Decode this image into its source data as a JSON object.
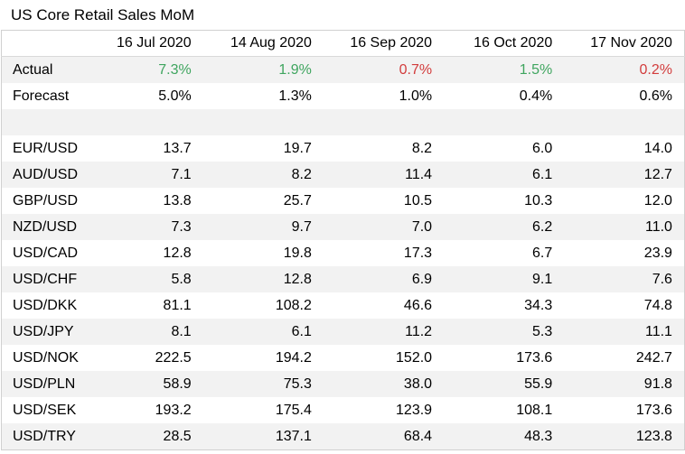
{
  "title": "US Core Retail Sales MoM",
  "chart_data": {
    "type": "table",
    "title": "US Core Retail Sales MoM",
    "columns": [
      "16 Jul 2020",
      "14 Aug 2020",
      "16 Sep 2020",
      "16 Oct 2020",
      "17 Nov 2020"
    ],
    "actual": {
      "label": "Actual",
      "values": [
        "7.3%",
        "1.9%",
        "0.7%",
        "1.5%",
        "0.2%"
      ],
      "direction": [
        "up",
        "up",
        "down",
        "up",
        "down"
      ]
    },
    "forecast": {
      "label": "Forecast",
      "values": [
        "5.0%",
        "1.3%",
        "1.0%",
        "0.4%",
        "0.6%"
      ]
    },
    "rows": [
      {
        "label": "EUR/USD",
        "values": [
          "13.7",
          "19.7",
          "8.2",
          "6.0",
          "14.0"
        ]
      },
      {
        "label": "AUD/USD",
        "values": [
          "7.1",
          "8.2",
          "11.4",
          "6.1",
          "12.7"
        ]
      },
      {
        "label": "GBP/USD",
        "values": [
          "13.8",
          "25.7",
          "10.5",
          "10.3",
          "12.0"
        ]
      },
      {
        "label": "NZD/USD",
        "values": [
          "7.3",
          "9.7",
          "7.0",
          "6.2",
          "11.0"
        ]
      },
      {
        "label": "USD/CAD",
        "values": [
          "12.8",
          "19.8",
          "17.3",
          "6.7",
          "23.9"
        ]
      },
      {
        "label": "USD/CHF",
        "values": [
          "5.8",
          "12.8",
          "6.9",
          "9.1",
          "7.6"
        ]
      },
      {
        "label": "USD/DKK",
        "values": [
          "81.1",
          "108.2",
          "46.6",
          "34.3",
          "74.8"
        ]
      },
      {
        "label": "USD/JPY",
        "values": [
          "8.1",
          "6.1",
          "11.2",
          "5.3",
          "11.1"
        ]
      },
      {
        "label": "USD/NOK",
        "values": [
          "222.5",
          "194.2",
          "152.0",
          "173.6",
          "242.7"
        ]
      },
      {
        "label": "USD/PLN",
        "values": [
          "58.9",
          "75.3",
          "38.0",
          "55.9",
          "91.8"
        ]
      },
      {
        "label": "USD/SEK",
        "values": [
          "193.2",
          "175.4",
          "123.9",
          "108.1",
          "173.6"
        ]
      },
      {
        "label": "USD/TRY",
        "values": [
          "28.5",
          "137.1",
          "68.4",
          "48.3",
          "123.8"
        ]
      }
    ]
  },
  "colors": {
    "up": "#3fa55f",
    "down": "#d23c3c",
    "shade": "#f2f2f2"
  }
}
